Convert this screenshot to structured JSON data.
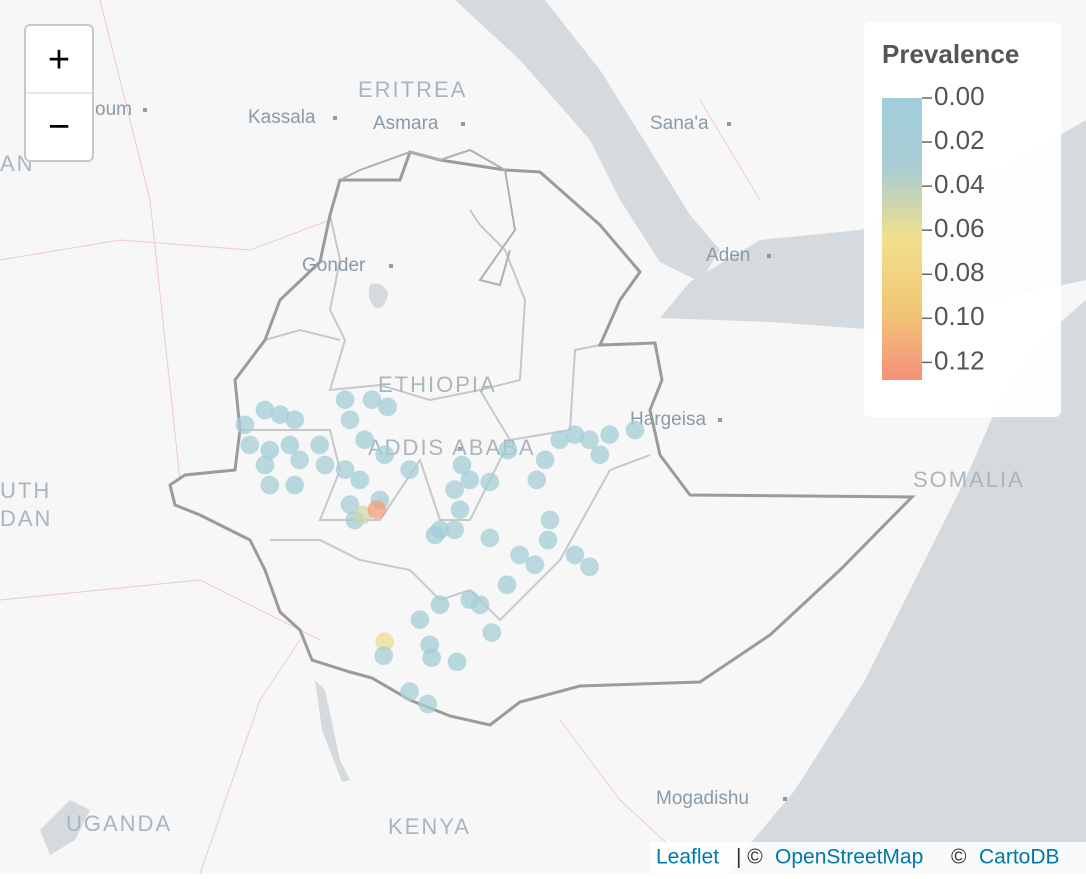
{
  "map": {
    "zoom_in": "+",
    "zoom_out": "−",
    "places": [
      "oum",
      "AN",
      "ERITREA",
      "Kassala",
      "Asmara",
      "Sana'a",
      "Aden",
      "Gonder",
      "ETHIOPIA",
      "ADDIS ABABA",
      "Hargeisa",
      "UTH",
      "DAN",
      "SOMALIA",
      "Mogadishu",
      "UGANDA",
      "KENYA"
    ],
    "attribution": [
      "Leaflet",
      "| ©",
      "OpenStreetMap",
      "©",
      "CartoDB"
    ],
    "legend": {
      "title": "Prevalence",
      "clim": [
        0,
        0.128
      ],
      "colors": [
        "#a0cedb",
        "#a9cdd2",
        "#f2df8c",
        "#f1c775",
        "#f4917b"
      ],
      "ticks": [
        {
          "value": 0,
          "label": "0.00"
        },
        {
          "value": 0.02,
          "label": "0.02"
        },
        {
          "value": 0.04,
          "label": "0.04"
        },
        {
          "value": 0.06,
          "label": "0.06"
        },
        {
          "value": 0.08,
          "label": "0.08"
        },
        {
          "value": 0.1,
          "label": "0.10"
        },
        {
          "value": 0.12,
          "label": "0.12"
        }
      ]
    },
    "points": {
      "lon": [
        34.75,
        34.34,
        35.06,
        35.36,
        34.44,
        34.85,
        35.26,
        35.46,
        34.75,
        35.36,
        34.85,
        35.87,
        35.98,
        36.39,
        36.49,
        36.94,
        37.26,
        36.79,
        36.39,
        37.2,
        37.71,
        36.69,
        36.49,
        37.1,
        36.59,
        36.75,
        37.04,
        38.78,
        38.63,
        38.94,
        39.35,
        39.72,
        38.74,
        38.33,
        38.23,
        38.63,
        39.35,
        40.31,
        40.48,
        40.78,
        41.09,
        41.39,
        41.6,
        41.8,
        42.32,
        40.58,
        40.54,
        39.96,
        40.27,
        41.09,
        41.39,
        39.7,
        38.94,
        38.33,
        37.92,
        39.15,
        39.39,
        38.12,
        37.2,
        37.18,
        38.16,
        38.68,
        37.71,
        38.08
      ],
      "lat": [
        9.75,
        9.46,
        9.66,
        9.56,
        9.07,
        8.97,
        9.07,
        8.78,
        8.68,
        8.29,
        8.29,
        9.07,
        8.68,
        9.95,
        9.56,
        9.95,
        9.81,
        9.17,
        8.59,
        8.88,
        8.59,
        8.39,
        7.91,
        8.0,
        7.61,
        7.71,
        7.81,
        8.68,
        8.2,
        8.39,
        8.35,
        8.97,
        7.81,
        7.42,
        7.32,
        7.42,
        7.26,
        8.39,
        8.78,
        9.17,
        9.27,
        9.17,
        8.88,
        9.27,
        9.36,
        7.61,
        7.22,
        6.93,
        6.74,
        6.93,
        6.7,
        6.35,
        6.06,
        5.96,
        5.67,
        5.96,
        5.42,
        5.18,
        5.24,
        4.97,
        4.93,
        4.85,
        4.27,
        4.03
      ],
      "values": [
        0.01,
        0.02,
        0.01,
        0.01,
        0.02,
        0.01,
        0.01,
        0.02,
        0.01,
        0.01,
        0.02,
        0.01,
        0.02,
        0.01,
        0.02,
        0.02,
        0.01,
        0.01,
        0.02,
        0.01,
        0.02,
        0.01,
        0.02,
        0.01,
        0.01,
        0.05,
        0.12,
        0.01,
        0.02,
        0.01,
        0.02,
        0.01,
        0.01,
        0.01,
        0.01,
        0.02,
        0.02,
        0.02,
        0.01,
        0.01,
        0.01,
        0.02,
        0.01,
        0.01,
        0.01,
        0.02,
        0.01,
        0.02,
        0.02,
        0.01,
        0.02,
        0.01,
        0.01,
        0.01,
        0.01,
        0.02,
        0.02,
        0.01,
        0.06,
        0.02,
        0.01,
        0.01,
        0.02,
        0.02
      ]
    }
  }
}
